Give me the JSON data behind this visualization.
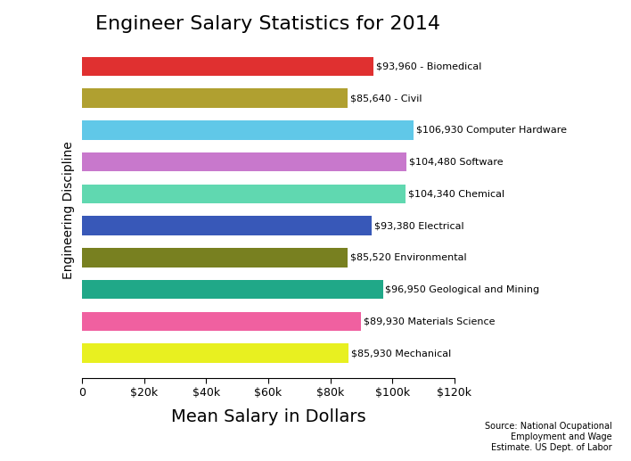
{
  "title": "Engineer Salary Statistics for 2014",
  "xlabel": "Mean Salary in Dollars",
  "ylabel": "Engineering Discipline",
  "source_text": "Source: National Ocupational\nEmployment and Wage\nEstimate. US Dept. of Labor",
  "categories": [
    "Mechanical",
    "Materials Science",
    "Geological and Mining",
    "Environmental",
    "Electrical",
    "Chemical",
    "Software",
    "Computer Hardware",
    "Civil",
    "Biomedical"
  ],
  "values": [
    85930,
    89930,
    96950,
    85520,
    93380,
    104340,
    104480,
    106930,
    85640,
    93960
  ],
  "bar_colors": [
    "#e8f020",
    "#f060a0",
    "#20a888",
    "#788020",
    "#3858b8",
    "#60d8b0",
    "#c878cc",
    "#60c8e8",
    "#b0a030",
    "#e03030"
  ],
  "bar_labels": [
    "$85,930 Mechanical",
    "$89,930 Materials Science",
    "$96,950 Geological and Mining",
    "$85,520 Environmental",
    "$93,380 Electrical",
    "$104,340 Chemical",
    "$104,480 Software",
    "$106,930 Computer Hardware",
    "$85,640 - Civil",
    "$93,960 - Biomedical"
  ],
  "xlim": [
    0,
    120000
  ],
  "xticks": [
    0,
    20000,
    40000,
    60000,
    80000,
    100000,
    120000
  ],
  "xtick_labels": [
    "0",
    "$20k",
    "$40k",
    "$60k",
    "$80k",
    "$100k",
    "$120k"
  ],
  "background_color": "#ffffff",
  "title_fontsize": 16,
  "xlabel_fontsize": 14,
  "ylabel_fontsize": 10,
  "bar_label_fontsize": 8,
  "tick_fontsize": 9
}
